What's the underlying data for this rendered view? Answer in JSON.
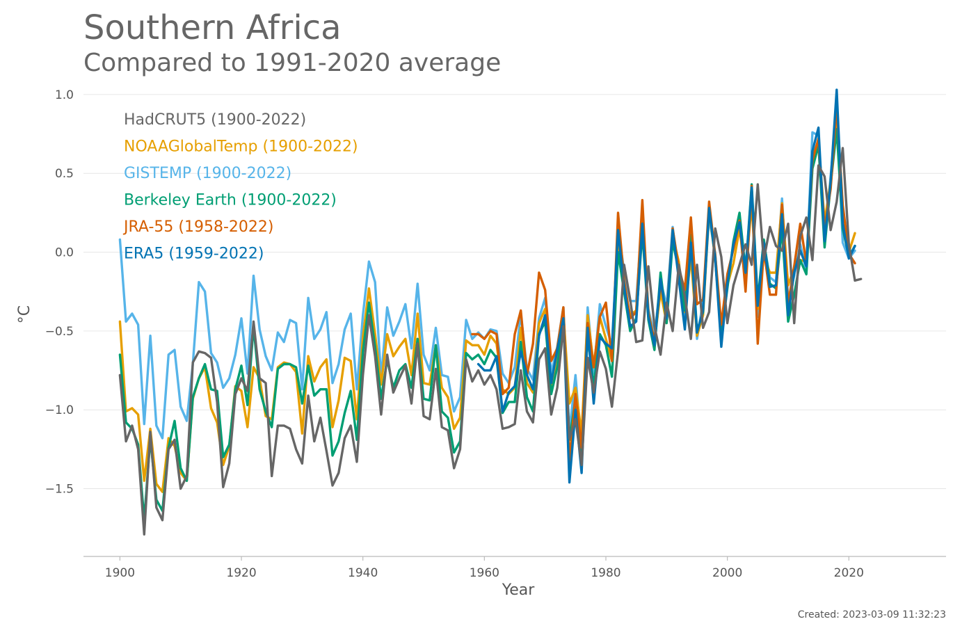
{
  "title": "Southern Africa",
  "subtitle": "Compared to 1991-2020 average",
  "footer": "Created: 2023-03-09 11:32:23",
  "chart_data": {
    "type": "line",
    "xlabel": "Year",
    "ylabel": "°C",
    "xlim": [
      1894,
      2036
    ],
    "ylim": [
      -1.93,
      1.07
    ],
    "xticks": [
      1900,
      1920,
      1940,
      1960,
      1980,
      2000,
      2020
    ],
    "yticks": [
      1.0,
      0.5,
      0.0,
      -0.5,
      -1.0,
      -1.5
    ],
    "ytick_labels": [
      "1.0",
      "0.5",
      "0.0",
      "−0.5",
      "−1.0",
      "−1.5"
    ],
    "grid": "horizontal",
    "legend_position": "top-left",
    "series": [
      {
        "name": "GISTEMP (1900-2022)",
        "color": "#56b4e9",
        "x_start": 1900,
        "values": [
          0.08,
          -0.44,
          -0.39,
          -0.46,
          -1.09,
          -0.53,
          -1.1,
          -1.18,
          -0.65,
          -0.62,
          -0.98,
          -1.07,
          -0.71,
          -0.19,
          -0.25,
          -0.64,
          -0.7,
          -0.86,
          -0.8,
          -0.65,
          -0.42,
          -0.77,
          -0.15,
          -0.49,
          -0.66,
          -0.75,
          -0.51,
          -0.57,
          -0.43,
          -0.45,
          -0.87,
          -0.29,
          -0.55,
          -0.49,
          -0.38,
          -0.83,
          -0.71,
          -0.49,
          -0.39,
          -0.87,
          -0.4,
          -0.06,
          -0.19,
          -0.8,
          -0.35,
          -0.53,
          -0.44,
          -0.33,
          -0.61,
          -0.2,
          -0.65,
          -0.75,
          -0.48,
          -0.78,
          -0.79,
          -1.01,
          -0.92,
          -0.43,
          -0.55,
          -0.51,
          -0.55,
          -0.49,
          -0.5,
          -0.77,
          -0.83,
          -0.73,
          -0.39,
          -0.74,
          -0.81,
          -0.42,
          -0.29,
          -0.77,
          -0.6,
          -0.35,
          -1.14,
          -0.78,
          -1.26,
          -0.35,
          -0.77,
          -0.33,
          -0.47,
          -0.59,
          0.15,
          -0.12,
          -0.31,
          -0.31,
          0.22,
          -0.36,
          -0.53,
          -0.18,
          -0.34,
          0.16,
          -0.16,
          -0.44,
          0.05,
          -0.55,
          -0.31,
          0.22,
          -0.01,
          -0.55,
          -0.16,
          0.03,
          0.22,
          -0.1,
          0.36,
          -0.41,
          0.06,
          -0.16,
          -0.19,
          0.34,
          -0.3,
          -0.15,
          0.05,
          -0.12,
          0.76,
          0.74,
          0.05,
          0.48,
          0.89,
          0.06,
          -0.04,
          0.01
        ],
        "name_color": "#56b4e9"
      },
      {
        "name": "NOAAGlobalTemp (1900-2022)",
        "color": "#e69f00",
        "x_start": 1900,
        "values": [
          -0.44,
          -1.01,
          -0.99,
          -1.03,
          -1.45,
          -1.12,
          -1.47,
          -1.52,
          -1.18,
          -1.23,
          -1.4,
          -1.45,
          -0.93,
          -0.8,
          -0.73,
          -0.99,
          -1.08,
          -1.35,
          -1.23,
          -0.85,
          -0.88,
          -1.11,
          -0.73,
          -0.8,
          -1.04,
          -1.06,
          -0.73,
          -0.7,
          -0.71,
          -0.76,
          -1.15,
          -0.66,
          -0.82,
          -0.73,
          -0.68,
          -1.11,
          -0.94,
          -0.67,
          -0.69,
          -1.06,
          -0.54,
          -0.23,
          -0.52,
          -0.84,
          -0.52,
          -0.66,
          -0.6,
          -0.55,
          -0.78,
          -0.39,
          -0.83,
          -0.84,
          -0.59,
          -0.86,
          -0.92,
          -1.12,
          -1.05,
          -0.56,
          -0.59,
          -0.59,
          -0.65,
          -0.53,
          -0.58,
          -0.87,
          -0.9,
          -0.86,
          -0.48,
          -0.83,
          -0.89,
          -0.45,
          -0.36,
          -0.86,
          -0.66,
          -0.39,
          -0.96,
          -0.86,
          -1.15,
          -0.4,
          -0.72,
          -0.41,
          -0.55,
          -0.69,
          0.05,
          -0.22,
          -0.4,
          -0.37,
          0.17,
          -0.38,
          -0.57,
          -0.25,
          -0.45,
          0.1,
          -0.06,
          -0.38,
          -0.03,
          -0.53,
          -0.4,
          0.27,
          -0.05,
          -0.51,
          -0.21,
          -0.07,
          0.15,
          -0.14,
          0.31,
          -0.36,
          -0.03,
          -0.13,
          -0.13,
          0.31,
          -0.21,
          -0.1,
          -0.05,
          -0.06,
          0.6,
          0.71,
          0.19,
          0.45,
          0.88,
          0.18,
          0.0,
          0.12
        ],
        "name_color": "#e69f00"
      },
      {
        "name": "Berkeley Earth (1900-2022)",
        "color": "#009e73",
        "x_start": 1900,
        "values": [
          -0.65,
          -1.08,
          -1.12,
          -1.22,
          -1.7,
          -1.18,
          -1.57,
          -1.64,
          -1.24,
          -1.07,
          -1.37,
          -1.45,
          -0.92,
          -0.8,
          -0.71,
          -0.87,
          -0.88,
          -1.3,
          -1.22,
          -0.87,
          -0.72,
          -0.97,
          -0.47,
          -0.87,
          -1.01,
          -1.11,
          -0.74,
          -0.71,
          -0.71,
          -0.73,
          -0.96,
          -0.72,
          -0.91,
          -0.87,
          -0.87,
          -1.29,
          -1.2,
          -1.02,
          -0.88,
          -1.19,
          -0.63,
          -0.32,
          -0.6,
          -0.93,
          -0.68,
          -0.86,
          -0.75,
          -0.71,
          -0.86,
          -0.55,
          -0.93,
          -0.94,
          -0.59,
          -1.01,
          -1.05,
          -1.27,
          -1.2,
          -0.64,
          -0.68,
          -0.65,
          -0.71,
          -0.62,
          -0.67,
          -1.02,
          -0.95,
          -0.95,
          -0.57,
          -0.92,
          -1.01,
          -0.52,
          -0.44,
          -0.9,
          -0.73,
          -0.42,
          -1.19,
          -0.93,
          -1.27,
          -0.53,
          -0.85,
          -0.52,
          -0.59,
          -0.79,
          0.0,
          -0.25,
          -0.5,
          -0.42,
          0.13,
          -0.43,
          -0.62,
          -0.13,
          -0.45,
          0.07,
          -0.12,
          -0.37,
          0.11,
          -0.5,
          -0.38,
          0.28,
          -0.04,
          -0.53,
          -0.23,
          0.07,
          0.25,
          -0.12,
          0.43,
          -0.31,
          0.08,
          -0.2,
          -0.23,
          0.15,
          -0.44,
          -0.27,
          -0.05,
          -0.14,
          0.53,
          0.68,
          0.03,
          0.43,
          0.78,
          0.15,
          -0.03,
          0.04
        ],
        "name_color": "#009e73"
      },
      {
        "name": "JRA-55 (1958-2022)",
        "color": "#d55e00",
        "x_start": 1958,
        "values": [
          -0.52,
          -0.52,
          -0.55,
          -0.5,
          -0.52,
          -0.9,
          -0.86,
          -0.52,
          -0.37,
          -0.78,
          -0.58,
          -0.13,
          -0.24,
          -0.69,
          -0.61,
          -0.35,
          -1.33,
          -0.9,
          -1.24,
          -0.45,
          -0.73,
          -0.41,
          -0.32,
          -0.69,
          0.25,
          -0.18,
          -0.42,
          -0.38,
          0.33,
          -0.39,
          -0.56,
          -0.2,
          -0.4,
          0.15,
          -0.1,
          -0.24,
          0.22,
          -0.33,
          -0.3,
          0.32,
          -0.02,
          -0.46,
          -0.14,
          0.02,
          0.2,
          -0.25,
          0.42,
          -0.58,
          0.02,
          -0.27,
          -0.27,
          0.3,
          -0.33,
          -0.09,
          0.18,
          -0.07,
          0.58,
          0.72,
          0.15,
          0.4,
          0.93,
          0.3,
          -0.01,
          -0.07
        ],
        "name_color": "#d55e00"
      },
      {
        "name": "ERA5 (1959-2022)",
        "color": "#0072b2",
        "x_start": 1959,
        "values": [
          -0.71,
          -0.75,
          -0.75,
          -0.66,
          -1.01,
          -0.89,
          -0.85,
          -0.63,
          -0.78,
          -0.87,
          -0.53,
          -0.4,
          -0.83,
          -0.62,
          -0.42,
          -1.46,
          -1.0,
          -1.4,
          -0.48,
          -0.96,
          -0.54,
          -0.58,
          -0.61,
          0.14,
          -0.22,
          -0.47,
          -0.44,
          0.18,
          -0.41,
          -0.59,
          -0.17,
          -0.42,
          0.14,
          -0.17,
          -0.49,
          0.06,
          -0.51,
          -0.37,
          0.28,
          -0.04,
          -0.6,
          -0.2,
          0.05,
          0.19,
          -0.13,
          0.41,
          -0.34,
          0.06,
          -0.22,
          -0.21,
          0.24,
          -0.4,
          -0.13,
          0.01,
          -0.09,
          0.64,
          0.79,
          0.07,
          0.45,
          1.03,
          0.18,
          -0.04,
          0.04
        ],
        "name_color": "#0072b2"
      },
      {
        "name": "HadCRUT5 (1900-2022)",
        "color": "#666666",
        "x_start": 1900,
        "values": [
          -0.78,
          -1.2,
          -1.1,
          -1.25,
          -1.79,
          -1.14,
          -1.62,
          -1.7,
          -1.25,
          -1.19,
          -1.5,
          -1.42,
          -0.7,
          -0.63,
          -0.64,
          -0.67,
          -0.95,
          -1.49,
          -1.34,
          -0.9,
          -0.8,
          -0.88,
          -0.44,
          -0.8,
          -0.83,
          -1.42,
          -1.1,
          -1.1,
          -1.12,
          -1.25,
          -1.34,
          -0.91,
          -1.2,
          -1.05,
          -1.26,
          -1.48,
          -1.4,
          -1.18,
          -1.1,
          -1.33,
          -0.78,
          -0.4,
          -0.66,
          -1.03,
          -0.65,
          -0.89,
          -0.8,
          -0.72,
          -0.96,
          -0.58,
          -1.04,
          -1.06,
          -0.74,
          -1.11,
          -1.13,
          -1.37,
          -1.25,
          -0.68,
          -0.82,
          -0.75,
          -0.84,
          -0.78,
          -0.87,
          -1.12,
          -1.11,
          -1.09,
          -0.75,
          -1.01,
          -1.08,
          -0.68,
          -0.61,
          -1.03,
          -0.86,
          -0.47,
          -1.18,
          -1.06,
          -1.35,
          -0.67,
          -0.89,
          -0.63,
          -0.74,
          -0.98,
          -0.63,
          -0.08,
          -0.3,
          -0.57,
          -0.56,
          -0.09,
          -0.47,
          -0.65,
          -0.32,
          -0.5,
          -0.08,
          -0.28,
          -0.55,
          -0.08,
          -0.48,
          -0.38,
          0.15,
          -0.03,
          -0.45,
          -0.21,
          -0.08,
          0.05,
          -0.08,
          0.43,
          -0.05,
          0.16,
          0.04,
          0.01,
          0.18,
          -0.45,
          0.1,
          0.22,
          -0.05,
          0.55,
          0.48,
          0.14,
          0.32,
          0.66,
          0.05,
          -0.18,
          -0.17
        ],
        "name_color": "#666666"
      }
    ],
    "legend": [
      {
        "label": "HadCRUT5 (1900-2022)",
        "color": "#666666"
      },
      {
        "label": "NOAAGlobalTemp (1900-2022)",
        "color": "#e69f00"
      },
      {
        "label": "GISTEMP (1900-2022)",
        "color": "#56b4e9"
      },
      {
        "label": "Berkeley Earth (1900-2022)",
        "color": "#009e73"
      },
      {
        "label": "JRA-55 (1958-2022)",
        "color": "#d55e00"
      },
      {
        "label": "ERA5 (1959-2022)",
        "color": "#0072b2"
      }
    ]
  }
}
